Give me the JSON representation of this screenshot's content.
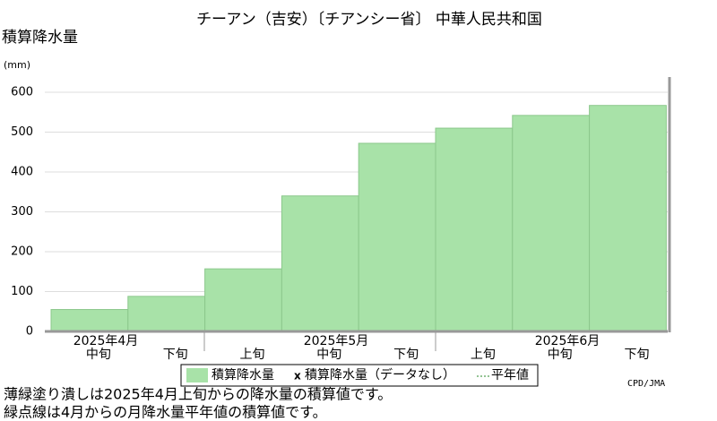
{
  "chart_data": {
    "type": "step-area",
    "title": "チーアン（吉安）〔チアンシー省〕 中華人民共和国",
    "y_label": "積算降水量",
    "y_unit": "(mm)",
    "categories": [
      "中旬",
      "下旬",
      "上旬",
      "中旬",
      "下旬",
      "上旬",
      "中旬",
      "下旬"
    ],
    "months": [
      "2025年4月",
      "2025年5月",
      "2025年6月"
    ],
    "series": [
      {
        "name": "積算降水量",
        "color": "#a8e2a8",
        "values": [
          55,
          88,
          157,
          340,
          472,
          510,
          542,
          567
        ]
      }
    ],
    "legend": [
      "積算降水量",
      "積算降水量（データなし）",
      "平年値"
    ],
    "ylim": [
      0,
      636
    ],
    "yticks": [
      0,
      100,
      200,
      300,
      400,
      500,
      600
    ],
    "grid": true,
    "notes": [
      "薄緑塗り潰しは2025年4月上旬からの降水量の積算値です。",
      "緑点線は4月からの月降水量平年値の積算値です。"
    ],
    "credit": "CPD/JMA"
  }
}
